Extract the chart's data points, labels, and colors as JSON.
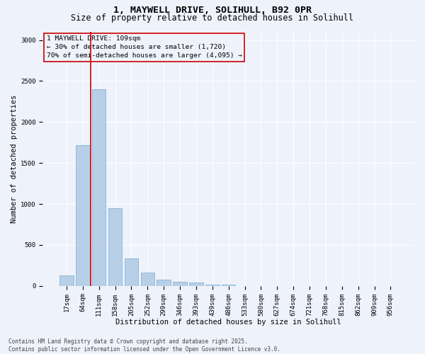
{
  "title_line1": "1, MAYWELL DRIVE, SOLIHULL, B92 0PR",
  "title_line2": "Size of property relative to detached houses in Solihull",
  "xlabel": "Distribution of detached houses by size in Solihull",
  "ylabel": "Number of detached properties",
  "categories": [
    "17sqm",
    "64sqm",
    "111sqm",
    "158sqm",
    "205sqm",
    "252sqm",
    "299sqm",
    "346sqm",
    "393sqm",
    "439sqm",
    "486sqm",
    "533sqm",
    "580sqm",
    "627sqm",
    "674sqm",
    "721sqm",
    "768sqm",
    "815sqm",
    "862sqm",
    "909sqm",
    "956sqm"
  ],
  "values": [
    130,
    1720,
    2400,
    950,
    340,
    165,
    80,
    50,
    40,
    20,
    15,
    0,
    0,
    0,
    0,
    0,
    0,
    0,
    0,
    0,
    0
  ],
  "bar_color": "#b8cfe8",
  "bar_edge_color": "#7aaacf",
  "vline_color": "#cc0000",
  "annotation_text": "1 MAYWELL DRIVE: 109sqm\n← 30% of detached houses are smaller (1,720)\n70% of semi-detached houses are larger (4,095) →",
  "ylim": [
    0,
    3100
  ],
  "yticks": [
    0,
    500,
    1000,
    1500,
    2000,
    2500,
    3000
  ],
  "bg_color": "#eef2fb",
  "footer": "Contains HM Land Registry data © Crown copyright and database right 2025.\nContains public sector information licensed under the Open Government Licence v3.0.",
  "title_fontsize": 9.5,
  "subtitle_fontsize": 8.5,
  "axis_label_fontsize": 7.5,
  "tick_fontsize": 6.5,
  "annotation_fontsize": 6.8,
  "footer_fontsize": 5.5
}
